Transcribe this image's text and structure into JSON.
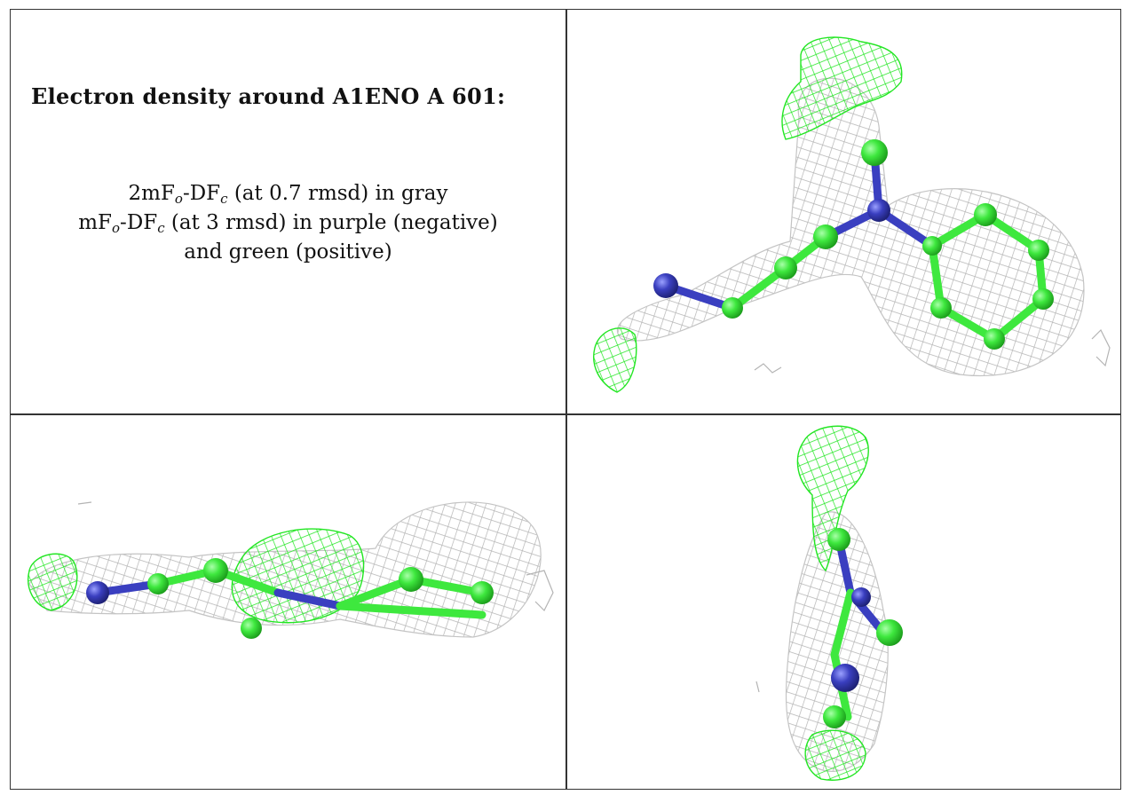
{
  "title": "Electron density around A1ENO A 601:",
  "legend": {
    "line1": {
      "pre": "2mF",
      "sub1": "o",
      "mid": "-DF",
      "sub2": "c",
      "post": " (at 0.7 rmsd) in gray"
    },
    "line2": {
      "pre": "mF",
      "sub1": "o",
      "mid": "-DF",
      "sub2": "c",
      "post": " (at 3 rmsd) in purple (negative)"
    },
    "line3": "and green (positive)"
  },
  "colors": {
    "gray_mesh": "#b4b4b4",
    "green_mesh": "#22e622",
    "carbon_atom": "#3ee83e",
    "nitrogen_atom": "#3a3fc0",
    "grid_lines": "#333333"
  },
  "views": [
    "density-view-top",
    "density-view-side",
    "density-view-end"
  ]
}
